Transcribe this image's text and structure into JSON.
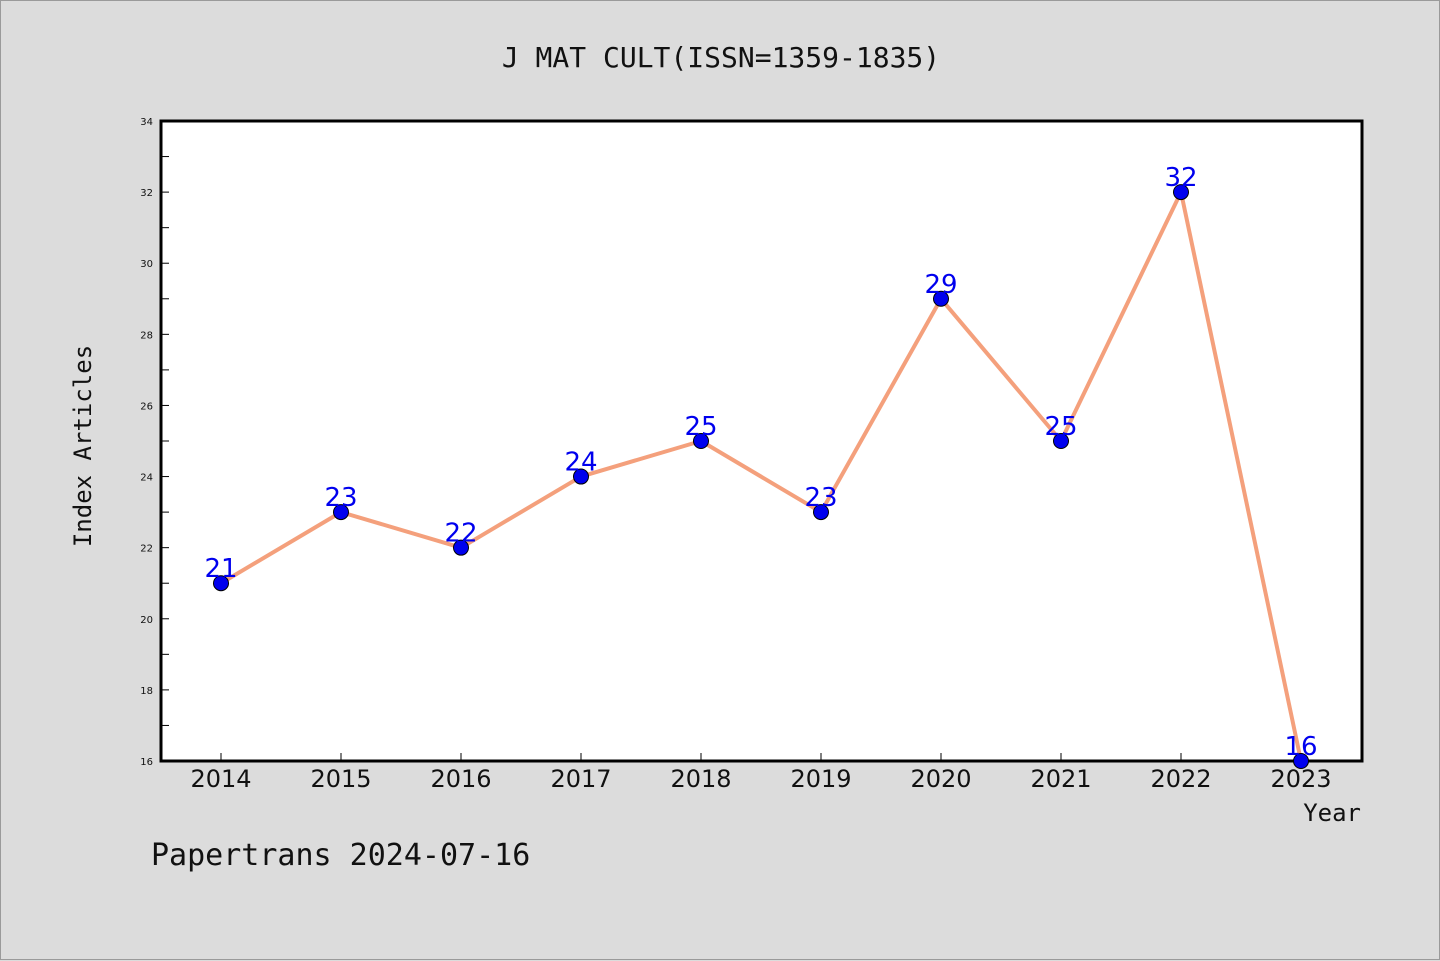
{
  "chart_data": {
    "type": "line",
    "title": "J MAT CULT(ISSN=1359-1835)",
    "xlabel": "Year",
    "ylabel": "Index Articles",
    "categories": [
      "2014",
      "2015",
      "2016",
      "2017",
      "2018",
      "2019",
      "2020",
      "2021",
      "2022",
      "2023"
    ],
    "series": [
      {
        "values": [
          21,
          23,
          22,
          24,
          25,
          23,
          29,
          25,
          32,
          16
        ]
      }
    ],
    "ylim": [
      16,
      34
    ],
    "yticks": [
      16,
      18,
      20,
      22,
      24,
      26,
      28,
      30,
      32,
      34
    ],
    "grid": false,
    "line_color": "#f4a07c",
    "marker_color": "#0000ee",
    "label_color": "#0000ee"
  },
  "footer": "Papertrans 2024-07-16"
}
